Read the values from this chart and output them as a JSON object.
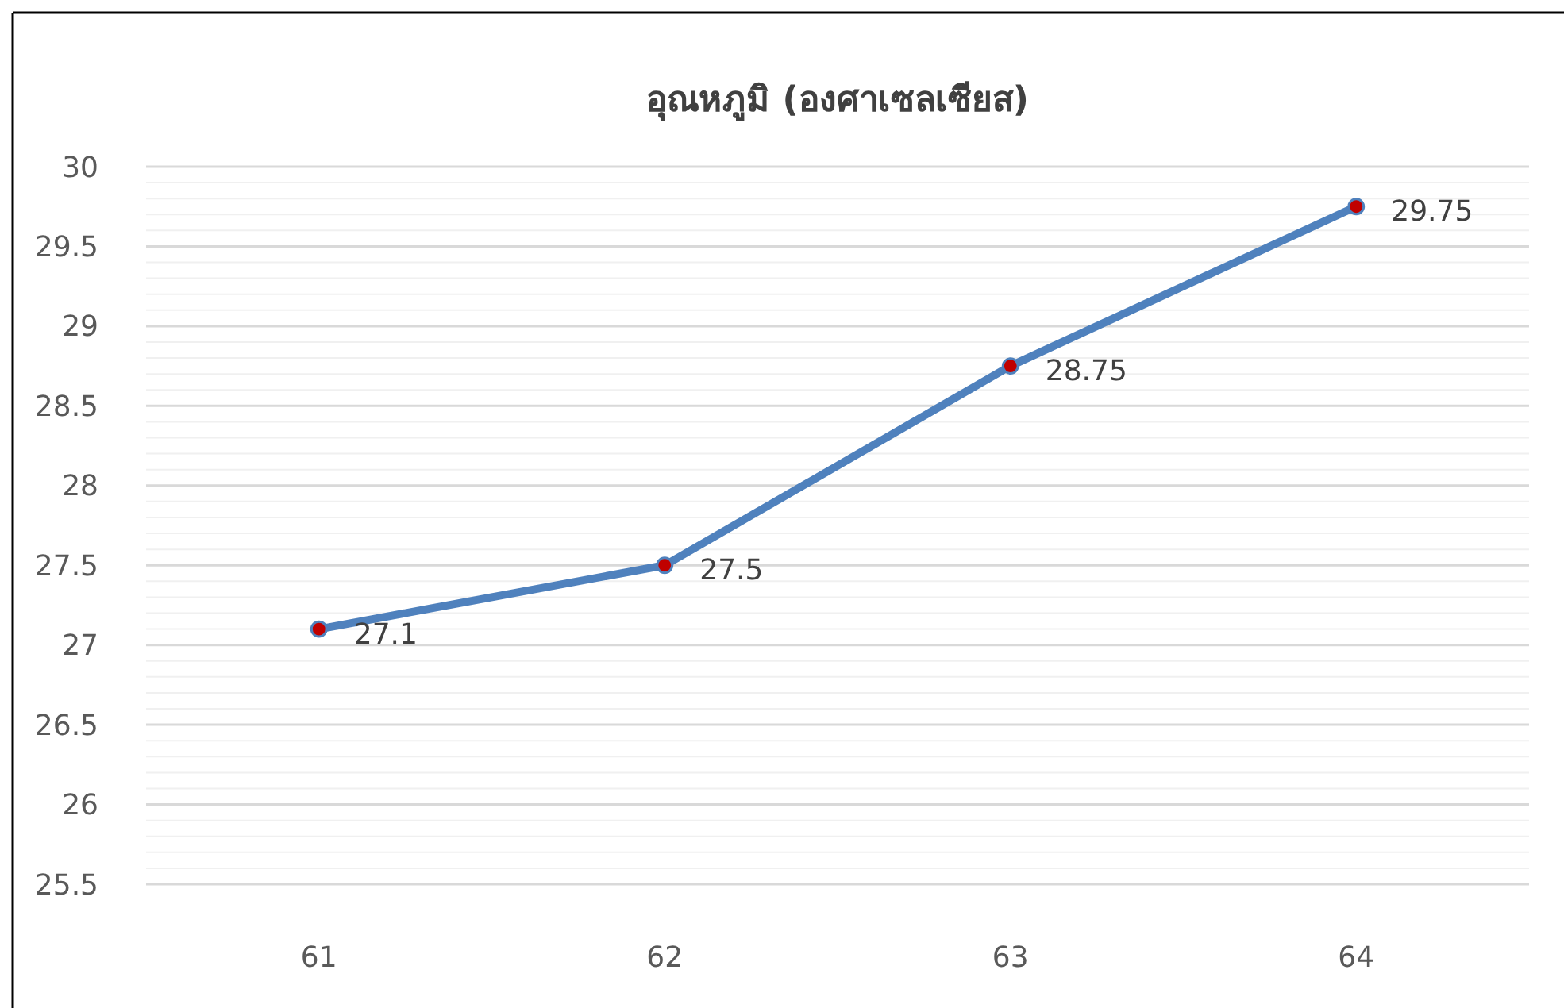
{
  "chart_data": {
    "type": "line",
    "title": "อุณหภูมิ (องศาเซลเซียส)",
    "categories": [
      "61",
      "62",
      "63",
      "64"
    ],
    "series": [
      {
        "color": "#4f81bd",
        "values": [
          27.1,
          27.5,
          28.75,
          29.75
        ]
      }
    ],
    "ylim": [
      25.5,
      30
    ],
    "yticks": [
      25.5,
      26,
      26.5,
      27,
      27.5,
      28,
      28.5,
      29,
      29.5,
      30
    ],
    "grid": "y",
    "marker": "circle",
    "line_style": "solid",
    "data_labels": true
  }
}
